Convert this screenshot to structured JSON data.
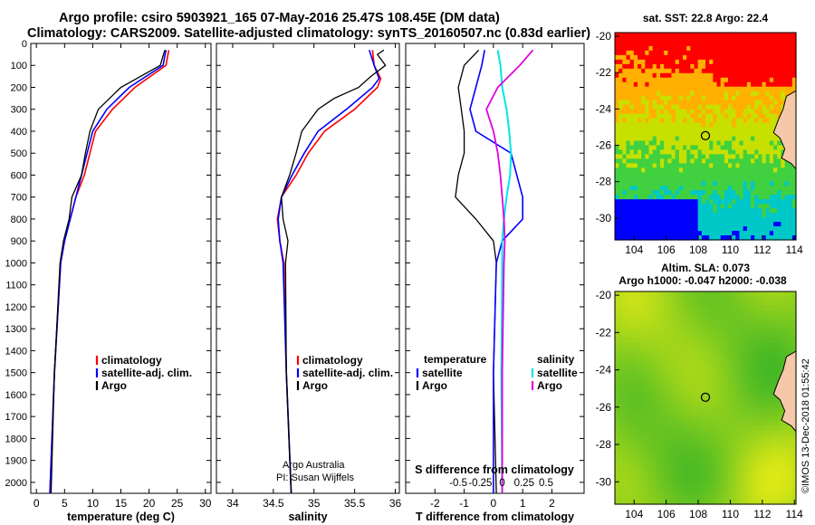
{
  "title": {
    "line1": "Argo profile: csiro 5903921_165 07-May-2016 25.47S 108.45E (DM data)",
    "line2": "Climatology: CARS2009. Satellite-adjusted climatology: synTS_20160507.nc (0.83d earlier)"
  },
  "depth_ticks": [
    "0",
    "100",
    "200",
    "300",
    "400",
    "500",
    "600",
    "700",
    "800",
    "900",
    "1000",
    "1100",
    "1200",
    "1300",
    "1400",
    "1500",
    "1600",
    "1700",
    "1800",
    "1900",
    "2000"
  ],
  "colors": {
    "climatology": "#ff0000",
    "satellite": "#0000ff",
    "argo": "#000000",
    "salinity_sat": "#00e5e5",
    "salinity_argo": "#e000e0",
    "circle": "#3a8a3a"
  },
  "chart_data": [
    {
      "type": "line",
      "name": "temperature profile",
      "xlabel": "temperature (deg C)",
      "xlim": [
        -1,
        31
      ],
      "ylim": [
        2050,
        0
      ],
      "x_ticks": [
        "0",
        "5",
        "10",
        "15",
        "20",
        "25",
        "30"
      ],
      "legend": [
        "climatology",
        "satellite-adj. clim.",
        "Argo"
      ],
      "series": [
        {
          "name": "climatology",
          "y": [
            30,
            100,
            200,
            300,
            400,
            500,
            600,
            700,
            800,
            900,
            1000,
            1500,
            2050
          ],
          "x": [
            23.5,
            23.0,
            17.5,
            13.5,
            10.5,
            9.5,
            8.5,
            7.0,
            6.0,
            5.0,
            4.3,
            3.2,
            2.4
          ]
        },
        {
          "name": "satellite-adj. clim.",
          "y": [
            30,
            100,
            200,
            300,
            400,
            500,
            600,
            700,
            800,
            900,
            1000,
            1500,
            2050
          ],
          "x": [
            23.0,
            22.5,
            16.5,
            12.5,
            10.0,
            9.0,
            8.0,
            7.0,
            6.0,
            5.0,
            4.3,
            3.2,
            2.4
          ]
        },
        {
          "name": "Argo",
          "y": [
            30,
            100,
            200,
            300,
            400,
            500,
            600,
            700,
            800,
            900,
            1000,
            1500,
            2050
          ],
          "x": [
            22.8,
            22.0,
            15.0,
            11.0,
            9.5,
            8.7,
            8.0,
            6.3,
            5.8,
            4.8,
            4.2,
            3.2,
            2.6
          ]
        }
      ]
    },
    {
      "type": "line",
      "name": "salinity profile",
      "xlabel": "salinity",
      "xlim": [
        33.8,
        36.05
      ],
      "ylim": [
        2050,
        0
      ],
      "x_ticks": [
        "34",
        "34.5",
        "35",
        "35.5",
        "36"
      ],
      "legend": [
        "climatology",
        "satellite-adj. clim.",
        "Argo"
      ],
      "annotation": [
        "Argo Australia",
        "PI: Susan Wijffels"
      ],
      "series": [
        {
          "name": "climatology",
          "y": [
            30,
            100,
            160,
            200,
            300,
            400,
            500,
            600,
            700,
            800,
            900,
            1000,
            1500,
            2050
          ],
          "x": [
            35.72,
            35.74,
            35.82,
            35.78,
            35.5,
            35.13,
            34.93,
            34.78,
            34.6,
            34.55,
            34.58,
            34.63,
            34.66,
            34.72
          ]
        },
        {
          "name": "satellite-adj. clim.",
          "y": [
            30,
            100,
            160,
            200,
            300,
            400,
            500,
            600,
            700,
            800,
            900,
            1000,
            1500,
            2050
          ],
          "x": [
            35.68,
            35.74,
            35.8,
            35.72,
            35.4,
            35.05,
            34.88,
            34.73,
            34.6,
            34.56,
            34.58,
            34.62,
            34.66,
            34.72
          ]
        },
        {
          "name": "Argo",
          "y": [
            30,
            50,
            100,
            150,
            200,
            250,
            300,
            400,
            500,
            600,
            700,
            800,
            900,
            1000,
            1500,
            2050
          ],
          "x": [
            35.86,
            35.78,
            35.88,
            35.7,
            35.55,
            35.25,
            35.05,
            34.85,
            34.78,
            34.7,
            34.6,
            34.62,
            34.68,
            34.65,
            34.66,
            34.72
          ]
        }
      ]
    },
    {
      "type": "line",
      "name": "difference profiles",
      "xlabel": "T difference from climatology",
      "xlabel_top": "S difference from climatology",
      "xlim": [
        -3.0,
        3.1
      ],
      "ylim": [
        2050,
        0
      ],
      "x_ticks": [
        "-2",
        "-1",
        "0",
        "1",
        "2"
      ],
      "x_ticks_top": [
        "-0.5",
        "-0.25",
        "0",
        "0.25",
        "0.5"
      ],
      "legend_temperature": {
        "header": "temperature",
        "items": [
          "satellite",
          "Argo"
        ]
      },
      "legend_salinity": {
        "header": "salinity",
        "items": [
          "satellite",
          "Argo"
        ]
      },
      "series": [
        {
          "name": "temperature satellite",
          "y": [
            30,
            100,
            200,
            300,
            400,
            500,
            600,
            700,
            800,
            900,
            1000,
            1500,
            2050
          ],
          "x": [
            -0.3,
            -0.4,
            -0.6,
            -0.8,
            -0.6,
            0.6,
            0.8,
            1.0,
            1.0,
            0.3,
            0.1,
            0.0,
            0.0
          ]
        },
        {
          "name": "temperature Argo",
          "y": [
            30,
            100,
            200,
            300,
            400,
            500,
            600,
            700,
            800,
            900,
            1000,
            1500,
            2050
          ],
          "x": [
            -0.5,
            -1.0,
            -1.2,
            -1.1,
            -1.0,
            -1.0,
            -1.2,
            -1.3,
            -0.6,
            0.0,
            0.1,
            0.0,
            0.1
          ]
        },
        {
          "name": "salinity satellite",
          "y": [
            30,
            100,
            200,
            300,
            400,
            500,
            600,
            700,
            800,
            900,
            1000,
            1500,
            2050
          ],
          "x": [
            -0.05,
            -0.02,
            0.0,
            0.05,
            0.08,
            0.1,
            0.09,
            0.05,
            0.02,
            0.0,
            0.0,
            -0.01,
            0.0
          ]
        },
        {
          "name": "salinity Argo",
          "y": [
            30,
            100,
            200,
            300,
            400,
            500,
            600,
            700,
            800,
            900,
            1000,
            1500,
            2050
          ],
          "x": [
            0.35,
            0.2,
            -0.05,
            -0.18,
            -0.1,
            -0.05,
            -0.02,
            0.0,
            0.02,
            0.03,
            0.02,
            0.0,
            0.0
          ]
        }
      ]
    },
    {
      "type": "heatmap",
      "name": "SST map",
      "title": "sat. SST: 22.8  Argo: 22.4",
      "xlim": [
        102.8,
        114.1
      ],
      "ylim": [
        -31.2,
        -19.8
      ],
      "x_ticks": [
        "104",
        "106",
        "108",
        "110",
        "112",
        "114"
      ],
      "y_ticks": [
        "-20",
        "-22",
        "-24",
        "-26",
        "-28",
        "-30"
      ],
      "float_position": {
        "lon": 108.45,
        "lat": -25.47
      },
      "palette": [
        "#0000ff",
        "#00c8c8",
        "#40d040",
        "#c8e000",
        "#ffb000",
        "#ff0000"
      ]
    },
    {
      "type": "heatmap",
      "name": "SLA map",
      "title_line1": "Altim. SLA: 0.073",
      "title_line2": "Argo h1000: -0.047 h2000: -0.038",
      "xlim": [
        102.8,
        114.1
      ],
      "ylim": [
        -31.2,
        -19.8
      ],
      "x_ticks": [
        "104",
        "106",
        "108",
        "110",
        "112",
        "114"
      ],
      "y_ticks": [
        "-20",
        "-22",
        "-24",
        "-26",
        "-28",
        "-30"
      ],
      "float_position": {
        "lon": 108.45,
        "lat": -25.47
      }
    }
  ],
  "credit": "©IMOS 13-Dec-2018 01:55:42"
}
